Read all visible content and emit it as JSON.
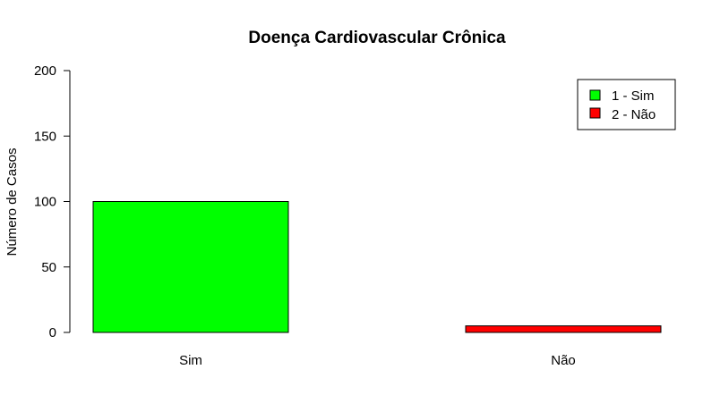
{
  "chart_data": {
    "type": "bar",
    "title": "Doença Cardiovascular Crônica",
    "xlabel": "",
    "ylabel": "Número de Casos",
    "categories": [
      "Sim",
      "Não"
    ],
    "values": [
      100,
      5
    ],
    "colors": [
      "#00ff00",
      "#ff0000"
    ],
    "ylim": [
      0,
      200
    ],
    "yticks": [
      0,
      50,
      100,
      150,
      200
    ],
    "grid": false,
    "legend": {
      "position": "top-right",
      "entries": [
        {
          "label": "1 - Sim",
          "color": "#00ff00"
        },
        {
          "label": "2 - Não",
          "color": "#ff0000"
        }
      ]
    }
  }
}
